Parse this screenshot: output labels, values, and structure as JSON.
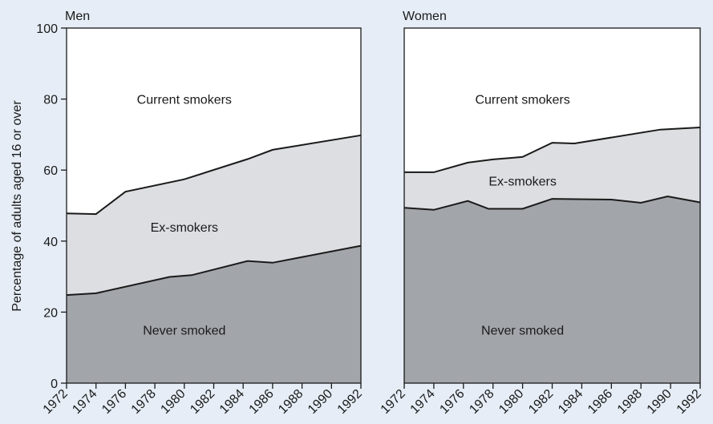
{
  "chart_data": {
    "type": "area",
    "stacked": true,
    "ylabel": "Percentage of adults aged 16 or over",
    "ylim": [
      0,
      100
    ],
    "yticks": [
      "0",
      "20",
      "40",
      "60",
      "80",
      "100"
    ],
    "xlim": [
      1972,
      1992
    ],
    "xticks": [
      "1972",
      "1974",
      "1976",
      "1978",
      "1980",
      "1982",
      "1984",
      "1986",
      "1988",
      "1990",
      "1992"
    ],
    "colors": {
      "never": "#a2a5aa",
      "ex": "#dcdee1",
      "current": "#ffffff",
      "line": "#1a1a1a"
    },
    "panels": [
      {
        "title": "Men",
        "region_labels": {
          "current": "Current smokers",
          "ex": "Ex-smokers",
          "never": "Never smoked"
        },
        "never_smoked": [
          [
            1972,
            24.8
          ],
          [
            1974,
            25.3
          ],
          [
            1979,
            29.9
          ],
          [
            1980.5,
            30.4
          ],
          [
            1984.3,
            34.4
          ],
          [
            1986,
            33.9
          ],
          [
            1992,
            38.7
          ]
        ],
        "never_plus_ex": [
          [
            1972,
            47.8
          ],
          [
            1974,
            47.6
          ],
          [
            1976,
            53.9
          ],
          [
            1980,
            57.4
          ],
          [
            1984.3,
            63.1
          ],
          [
            1986,
            65.7
          ],
          [
            1992,
            69.8
          ]
        ]
      },
      {
        "title": "Women",
        "region_labels": {
          "current": "Current smokers",
          "ex": "Ex-smokers",
          "never": "Never smoked"
        },
        "never_smoked": [
          [
            1972,
            49.4
          ],
          [
            1974,
            48.8
          ],
          [
            1976.3,
            51.3
          ],
          [
            1977.7,
            49.1
          ],
          [
            1980,
            49.1
          ],
          [
            1982,
            51.9
          ],
          [
            1986,
            51.7
          ],
          [
            1988,
            50.8
          ],
          [
            1989.8,
            52.6
          ],
          [
            1992,
            50.9
          ]
        ],
        "never_plus_ex": [
          [
            1972,
            59.4
          ],
          [
            1974,
            59.4
          ],
          [
            1976.3,
            62.1
          ],
          [
            1978,
            63.0
          ],
          [
            1980,
            63.7
          ],
          [
            1982,
            67.7
          ],
          [
            1983.5,
            67.5
          ],
          [
            1989.3,
            71.4
          ],
          [
            1992,
            72.0
          ]
        ]
      }
    ]
  }
}
